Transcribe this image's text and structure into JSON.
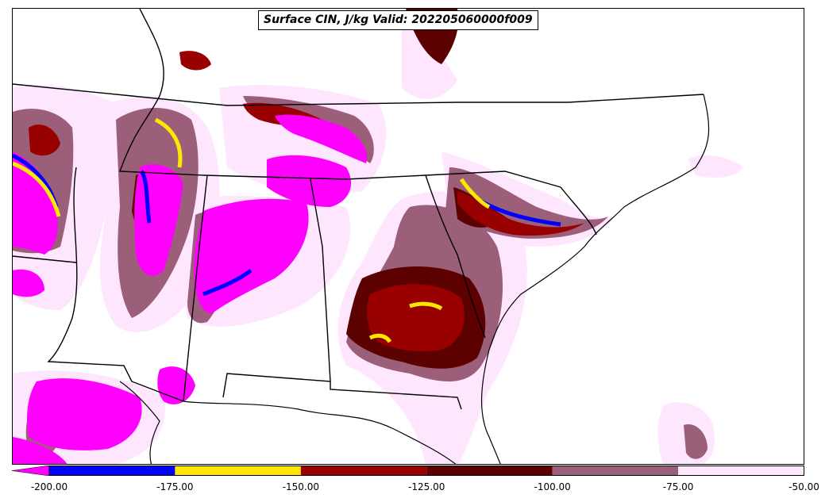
{
  "title": "Surface CIN, J/kg Valid: 202205060000f009",
  "colorbar": {
    "extend": "min",
    "levels": [
      "-200.00",
      "-175.00",
      "-150.00",
      "-125.00",
      "-100.00",
      "-75.00",
      "-50.00"
    ],
    "colors": [
      "#ff00ff",
      "#0000ff",
      "#ffe800",
      "#990000",
      "#5c0000",
      "#9c5f79",
      "#ffe6ff"
    ],
    "extend_color": "#ff00ff"
  },
  "legend_colors": {
    "magenta": "#ff00ff",
    "blue": "#0000ff",
    "yellow": "#ffe800",
    "dark_red": "#990000",
    "maroon": "#5c0000",
    "mauve": "#9c5f79",
    "pale_pink": "#ffe6ff"
  }
}
